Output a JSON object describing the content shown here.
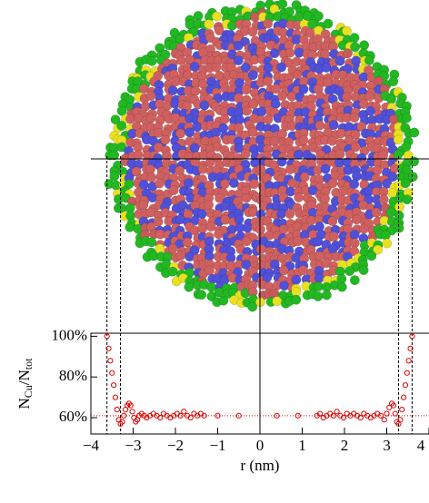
{
  "chart_data": {
    "type": "scatter",
    "xlabel": "r (nm)",
    "ylabel": [
      "N",
      "Cu",
      "/N",
      "tot"
    ],
    "series": [
      {
        "color": "#e00000",
        "x": [
          -3.62,
          -3.58,
          -3.54,
          -3.5,
          -3.46,
          -3.42,
          -3.38,
          -3.34,
          -3.3,
          -3.26,
          -3.22,
          -3.18,
          -3.14,
          -3.1,
          -3.06,
          -3.02,
          -2.98,
          -2.94,
          -2.9,
          -2.86,
          -2.8,
          -2.74,
          -2.68,
          -2.6,
          -2.52,
          -2.44,
          -2.36,
          -2.28,
          -2.2,
          -2.12,
          -2.04,
          -1.96,
          -1.88,
          -1.8,
          -1.72,
          -1.64,
          -1.56,
          -1.48,
          -1.4,
          -1.32,
          -1.0,
          -0.5,
          0.4,
          0.9,
          1.35,
          1.42,
          1.5,
          1.58,
          1.66,
          1.74,
          1.82,
          1.9,
          1.98,
          2.06,
          2.14,
          2.22,
          2.3,
          2.38,
          2.46,
          2.54,
          2.62,
          2.7,
          2.78,
          2.86,
          2.94,
          3.0,
          3.06,
          3.12,
          3.16,
          3.2,
          3.24,
          3.28,
          3.32,
          3.36,
          3.4,
          3.44,
          3.48,
          3.52,
          3.56,
          3.6
        ],
        "values": [
          100,
          94,
          88,
          82,
          76,
          70,
          64,
          59,
          57,
          58,
          61,
          64,
          66,
          67,
          66,
          63,
          60,
          58,
          59,
          61,
          62,
          61,
          60,
          61,
          62,
          61,
          60,
          62,
          61,
          60,
          61,
          62,
          61,
          63,
          61,
          60,
          62,
          61,
          62,
          61,
          61,
          61,
          61,
          61,
          61,
          62,
          60,
          61,
          62,
          61,
          63,
          61,
          60,
          62,
          61,
          62,
          61,
          60,
          62,
          61,
          60,
          61,
          62,
          61,
          59,
          62,
          65,
          67,
          66,
          62,
          58,
          57,
          59,
          64,
          70,
          76,
          82,
          88,
          94,
          100
        ]
      }
    ],
    "mean_line": 61,
    "guides_x": [
      -3.62,
      -3.3,
      3.28,
      3.6
    ],
    "xlim": [
      -4,
      4
    ],
    "ylim": [
      52,
      101.5
    ],
    "xticks": [
      {
        "value": -4,
        "label": "−4"
      },
      {
        "value": -3,
        "label": "−3"
      },
      {
        "value": -2,
        "label": "−2"
      },
      {
        "value": -1,
        "label": "−1"
      },
      0,
      1,
      2,
      3,
      4
    ],
    "yticks": [
      {
        "value": 60,
        "label": "60%"
      },
      {
        "value": 80,
        "label": "80%"
      },
      {
        "value": 100,
        "label": "100%"
      }
    ]
  }
}
